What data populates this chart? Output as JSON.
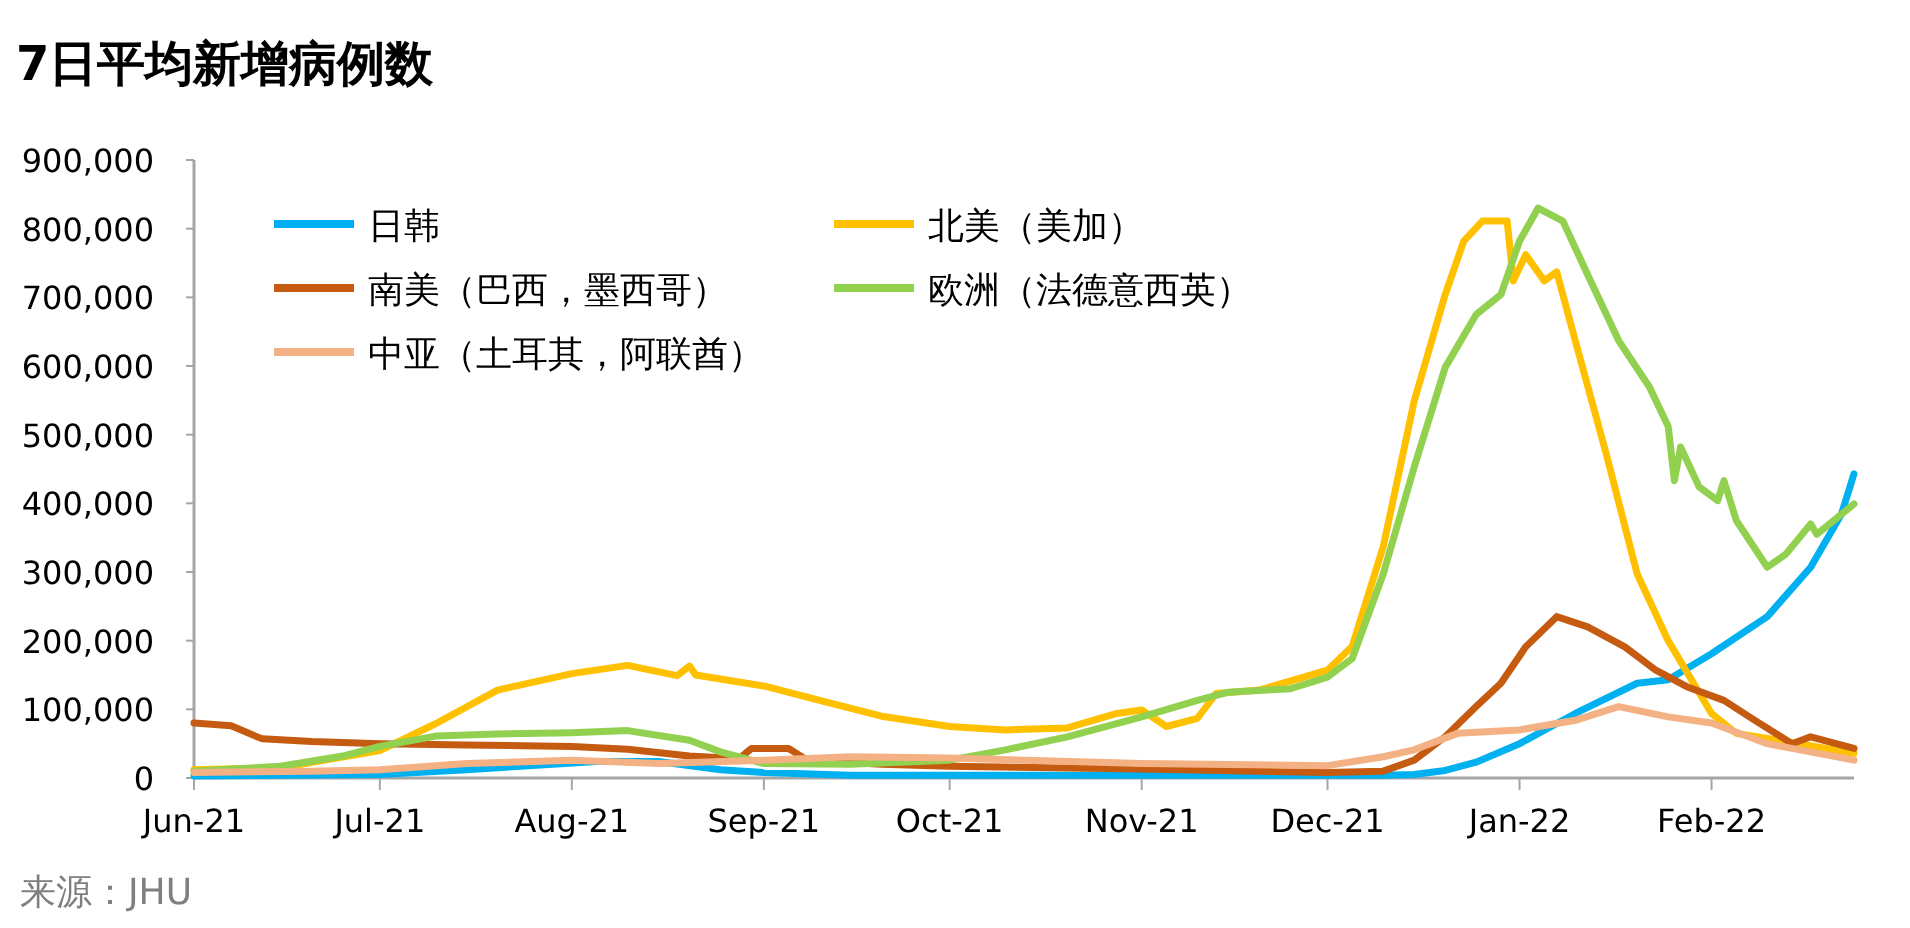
{
  "chart_data": {
    "type": "line",
    "title": "7日平均新增病例数",
    "annotations": [
      "来源：JHU"
    ],
    "xlim": [
      "2021-06-01",
      "2022-02-24"
    ],
    "xticks": [
      {
        "value": "2021-06-01",
        "label": "Jun-21"
      },
      {
        "value": "2021-07-01",
        "label": "Jul-21"
      },
      {
        "value": "2021-08-01",
        "label": "Aug-21"
      },
      {
        "value": "2021-09-01",
        "label": "Sep-21"
      },
      {
        "value": "2021-10-01",
        "label": "Oct-21"
      },
      {
        "value": "2021-11-01",
        "label": "Nov-21"
      },
      {
        "value": "2021-12-01",
        "label": "Dec-21"
      },
      {
        "value": "2022-01-01",
        "label": "Jan-22"
      },
      {
        "value": "2022-02-01",
        "label": "Feb-22"
      }
    ],
    "ylim": [
      0,
      900000
    ],
    "yticks": [
      {
        "value": 0,
        "label": "0"
      },
      {
        "value": 100000,
        "label": "100,000"
      },
      {
        "value": 200000,
        "label": "200,000"
      },
      {
        "value": 300000,
        "label": "300,000"
      },
      {
        "value": 400000,
        "label": "400,000"
      },
      {
        "value": 500000,
        "label": "500,000"
      },
      {
        "value": 600000,
        "label": "600,000"
      },
      {
        "value": 700000,
        "label": "700,000"
      },
      {
        "value": 800000,
        "label": "800,000"
      },
      {
        "value": 900000,
        "label": "900,000"
      }
    ],
    "grid": false,
    "legend": "top left",
    "line_style": "solid",
    "series": [
      {
        "name": "日韩",
        "color": "#00b0f0",
        "x": [
          "2021-06-01",
          "2021-07-01",
          "2021-07-15",
          "2021-07-25",
          "2021-08-05",
          "2021-08-15",
          "2021-08-25",
          "2021-09-01",
          "2021-09-15",
          "2021-10-15",
          "2021-11-15",
          "2021-12-10",
          "2021-12-15",
          "2021-12-20",
          "2021-12-25",
          "2022-01-01",
          "2022-01-10",
          "2022-01-20",
          "2022-01-25",
          "2022-02-01",
          "2022-02-10",
          "2022-02-17",
          "2022-02-22",
          "2022-02-24"
        ],
        "values": [
          3000,
          5000,
          12000,
          18000,
          24000,
          24000,
          12000,
          8000,
          4000,
          4000,
          4000,
          4000,
          5000,
          11000,
          23000,
          50000,
          94000,
          138000,
          143000,
          181000,
          235000,
          307000,
          385000,
          443000
        ]
      },
      {
        "name": "北美（美加）",
        "color": "#ffc000",
        "x": [
          "2021-06-01",
          "2021-06-15",
          "2021-07-01",
          "2021-07-10",
          "2021-07-20",
          "2021-08-01",
          "2021-08-10",
          "2021-08-18",
          "2021-08-20",
          "2021-08-21",
          "2021-09-01",
          "2021-09-10",
          "2021-09-20",
          "2021-10-01",
          "2021-10-10",
          "2021-10-20",
          "2021-10-28",
          "2021-11-01",
          "2021-11-05",
          "2021-11-10",
          "2021-11-13",
          "2021-11-20",
          "2021-12-01",
          "2021-12-05",
          "2021-12-10",
          "2021-12-15",
          "2021-12-20",
          "2021-12-23",
          "2021-12-26",
          "2021-12-30",
          "2021-12-31",
          "2022-01-02",
          "2022-01-05",
          "2022-01-07",
          "2022-01-10",
          "2022-01-15",
          "2022-01-20",
          "2022-01-25",
          "2022-02-01",
          "2022-02-05",
          "2022-02-15",
          "2022-02-24"
        ],
        "values": [
          12000,
          15000,
          40000,
          79000,
          128000,
          152000,
          164000,
          149000,
          163000,
          150000,
          134000,
          113000,
          90000,
          75000,
          70000,
          73000,
          94000,
          99000,
          75000,
          87000,
          123000,
          128000,
          157000,
          192000,
          337000,
          549000,
          704000,
          782000,
          811000,
          811000,
          724000,
          762000,
          724000,
          737000,
          637000,
          472000,
          297000,
          200000,
          94000,
          65000,
          50000,
          36000
        ]
      },
      {
        "name": "南美（巴西，墨西哥）",
        "color": "#c55a11",
        "x": [
          "2021-06-01",
          "2021-06-07",
          "2021-06-12",
          "2021-06-20",
          "2021-07-01",
          "2021-07-15",
          "2021-08-01",
          "2021-08-10",
          "2021-08-20",
          "2021-08-28",
          "2021-08-30",
          "2021-09-05",
          "2021-09-08",
          "2021-09-20",
          "2021-10-01",
          "2021-11-01",
          "2021-12-01",
          "2021-12-10",
          "2021-12-15",
          "2021-12-20",
          "2021-12-25",
          "2021-12-29",
          "2022-01-02",
          "2022-01-07",
          "2022-01-12",
          "2022-01-18",
          "2022-01-23",
          "2022-01-28",
          "2022-02-03",
          "2022-02-08",
          "2022-02-14",
          "2022-02-17",
          "2022-02-24"
        ],
        "values": [
          80000,
          76000,
          57000,
          53000,
          50000,
          48000,
          46000,
          42000,
          32000,
          28000,
          43000,
          43000,
          26000,
          20000,
          17000,
          13000,
          8000,
          10000,
          26000,
          60000,
          104000,
          138000,
          191000,
          235000,
          220000,
          191000,
          157000,
          133000,
          113000,
          84000,
          50000,
          60000,
          43000
        ]
      },
      {
        "name": "欧洲（法德意西英）",
        "color": "#92d050",
        "x": [
          "2021-06-01",
          "2021-06-15",
          "2021-06-25",
          "2021-07-01",
          "2021-07-10",
          "2021-07-20",
          "2021-08-01",
          "2021-08-10",
          "2021-08-20",
          "2021-08-25",
          "2021-09-01",
          "2021-09-15",
          "2021-10-01",
          "2021-10-10",
          "2021-10-20",
          "2021-11-01",
          "2021-11-10",
          "2021-11-15",
          "2021-11-25",
          "2021-12-01",
          "2021-12-05",
          "2021-12-10",
          "2021-12-15",
          "2021-12-20",
          "2021-12-25",
          "2021-12-29",
          "2022-01-01",
          "2022-01-04",
          "2022-01-08",
          "2022-01-12",
          "2022-01-17",
          "2022-01-22",
          "2022-01-25",
          "2022-01-26",
          "2022-01-27",
          "2022-01-30",
          "2022-02-02",
          "2022-02-03",
          "2022-02-05",
          "2022-02-10",
          "2022-02-13",
          "2022-02-17",
          "2022-02-18",
          "2022-02-24"
        ],
        "values": [
          10000,
          17000,
          32000,
          46000,
          61000,
          64000,
          66000,
          69000,
          55000,
          38000,
          21000,
          20000,
          26000,
          41000,
          60000,
          89000,
          113000,
          125000,
          130000,
          147000,
          174000,
          297000,
          453000,
          598000,
          675000,
          704000,
          782000,
          830000,
          811000,
          733000,
          637000,
          569000,
          512000,
          433000,
          482000,
          424000,
          404000,
          433000,
          375000,
          307000,
          326000,
          370000,
          355000,
          399000
        ]
      },
      {
        "name": "中亚（土耳其，阿联酋）",
        "color": "#f4b183",
        "x": [
          "2021-06-01",
          "2021-06-20",
          "2021-07-01",
          "2021-07-15",
          "2021-08-01",
          "2021-08-15",
          "2021-09-01",
          "2021-09-15",
          "2021-10-01",
          "2021-11-01",
          "2021-12-01",
          "2021-12-10",
          "2021-12-15",
          "2021-12-22",
          "2022-01-01",
          "2022-01-10",
          "2022-01-17",
          "2022-01-25",
          "2022-02-01",
          "2022-02-10",
          "2022-02-24"
        ],
        "values": [
          8000,
          10000,
          12000,
          21000,
          26000,
          21000,
          26000,
          31000,
          29000,
          21000,
          18000,
          31000,
          41000,
          65000,
          70000,
          84000,
          104000,
          89000,
          80000,
          50000,
          26000
        ]
      }
    ]
  }
}
